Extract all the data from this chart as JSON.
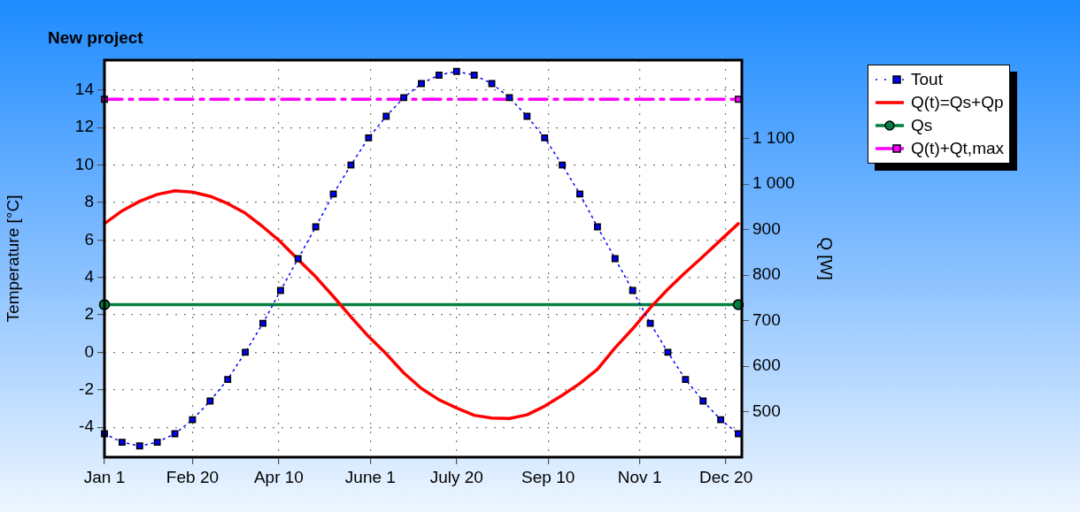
{
  "chart_data": {
    "type": "line",
    "title": "New project",
    "ylabel": "Temperature [°C]",
    "y2label": "Q [W]",
    "x": [
      "--01-01",
      "--01-11",
      "--01-21",
      "--01-31",
      "--02-10",
      "--02-20",
      "--03-02",
      "--03-12",
      "--03-22",
      "--04-01",
      "--04-11",
      "--04-21",
      "--05-01",
      "--05-11",
      "--05-21",
      "--05-31",
      "--06-10",
      "--06-20",
      "--06-30",
      "--07-10",
      "--07-20",
      "--07-30",
      "--08-09",
      "--08-19",
      "--08-29",
      "--09-08",
      "--09-18",
      "--09-28",
      "--10-08",
      "--10-18",
      "--10-28",
      "--11-07",
      "--11-17",
      "--11-27",
      "--12-07",
      "--12-17",
      "--12-27"
    ],
    "xlim": [
      "--01-01",
      "--12-29"
    ],
    "xticks": [
      {
        "value": "--01-01",
        "label": "Jan 1"
      },
      {
        "value": "--02-20",
        "label": "Feb 20"
      },
      {
        "value": "--04-10",
        "label": "Apr 10"
      },
      {
        "value": "--06-01",
        "label": "June 1"
      },
      {
        "value": "--07-20",
        "label": "July 20"
      },
      {
        "value": "--09-10",
        "label": "Sep 10"
      },
      {
        "value": "--11-01",
        "label": "Nov 1"
      },
      {
        "value": "--12-20",
        "label": "Dec 20"
      }
    ],
    "ylim": [
      -5.6,
      15.6
    ],
    "yticks": [
      -4,
      -2,
      0,
      2,
      4,
      6,
      8,
      10,
      12,
      14
    ],
    "y2lim": [
      400,
      1272
    ],
    "y2ticks": [
      500,
      600,
      700,
      800,
      900,
      {
        "value": 1000,
        "label": "1 000"
      },
      {
        "value": 1100,
        "label": "1 100"
      }
    ],
    "grid": true,
    "legend": "top right",
    "series": [
      {
        "name": "Tout",
        "color": "#0000ff",
        "marker": "square",
        "line_style": "dotted",
        "values": [
          -4.35,
          -4.8,
          -5.0,
          -4.8,
          -4.35,
          -3.6,
          -2.6,
          -1.45,
          0,
          1.55,
          3.3,
          5.0,
          6.7,
          8.45,
          10.0,
          11.45,
          12.6,
          13.6,
          14.35,
          14.8,
          15.0,
          14.8,
          14.35,
          13.6,
          12.6,
          11.45,
          10.0,
          8.45,
          6.7,
          5.0,
          3.3,
          1.55,
          0,
          -1.45,
          -2.6,
          -3.6,
          -4.35
        ]
      },
      {
        "name": "Q(t)=Qs+Qp",
        "color": "#ff0000",
        "axis": "y2",
        "marker": "none",
        "line_style": "solid",
        "values": [
          913,
          941,
          962,
          977,
          985,
          982,
          973,
          957,
          936,
          906,
          873,
          834,
          796,
          753,
          708,
          665,
          627,
          585,
          551,
          526,
          508,
          492,
          486,
          485,
          493,
          512,
          536,
          562,
          593,
          640,
          682,
          728,
          769,
          806,
          841,
          877,
          913
        ]
      },
      {
        "name": "Qs",
        "color": "#008040",
        "axis": "y2",
        "marker": "circle",
        "line_style": "solid",
        "x": [
          "--01-01",
          "--12-27"
        ],
        "values": [
          735,
          735
        ]
      },
      {
        "name": "Q(t)+Qt,max",
        "color": "#ff00ff",
        "axis": "y2",
        "marker": "square",
        "line_style": "dashed",
        "x": [
          "--01-01",
          "--12-27"
        ],
        "values": [
          1186,
          1186
        ]
      }
    ]
  }
}
